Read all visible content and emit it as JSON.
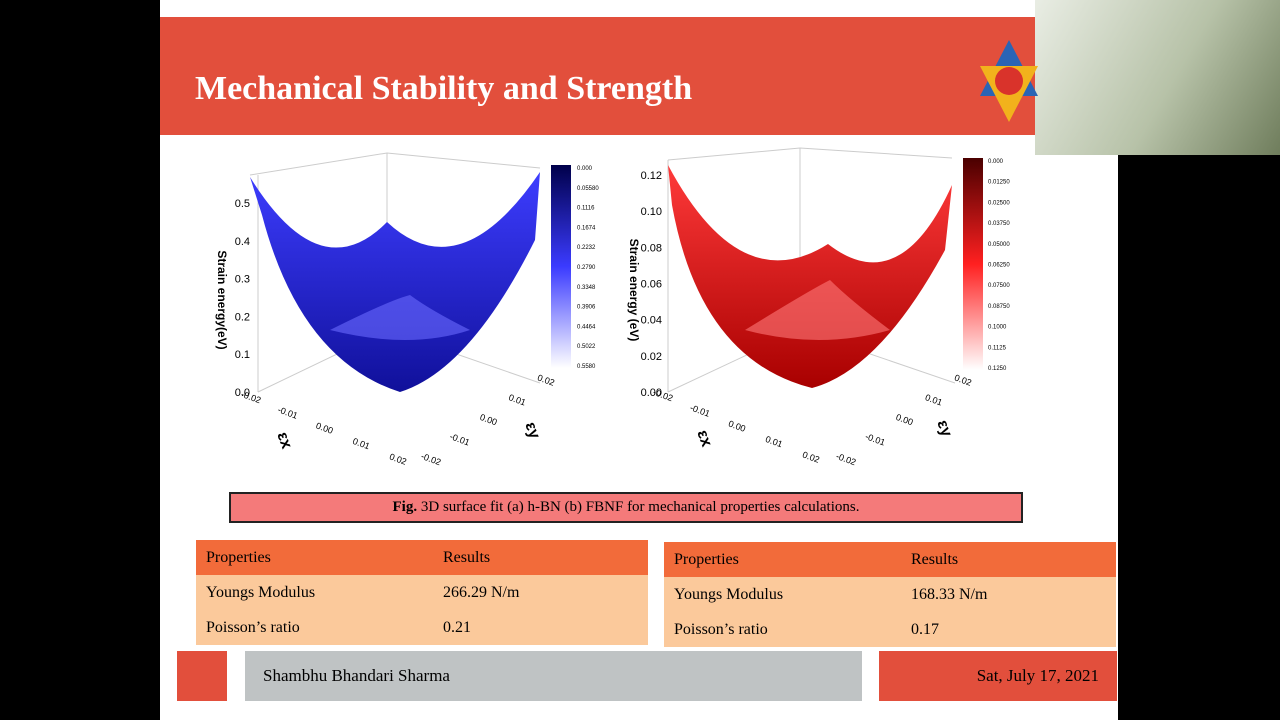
{
  "header": {
    "title": "Mechanical Stability and Strength"
  },
  "figures": [
    {
      "z_label": "Strain energy(eV)",
      "x_label": "εx",
      "y_label": "εy",
      "z_ticks": [
        "0.0",
        "0.1",
        "0.2",
        "0.3",
        "0.4",
        "0.5"
      ],
      "x_ticks": [
        "-0.02",
        "-0.01",
        "0.00",
        "0.01",
        "0.02"
      ],
      "y_ticks": [
        "-0.02",
        "-0.01",
        "0.00",
        "0.01",
        "0.02"
      ],
      "colorbar_ticks": [
        "0.000",
        "0.05580",
        "0.1116",
        "0.1674",
        "0.2232",
        "0.2790",
        "0.3348",
        "0.3906",
        "0.4464",
        "0.5022",
        "0.5580"
      ]
    },
    {
      "z_label": "Strain energy (eV)",
      "x_label": "εx",
      "y_label": "εy",
      "z_ticks": [
        "0.00",
        "0.02",
        "0.04",
        "0.06",
        "0.08",
        "0.10",
        "0.12"
      ],
      "x_ticks": [
        "-0.02",
        "-0.01",
        "0.00",
        "0.01",
        "0.02"
      ],
      "y_ticks": [
        "-0.02",
        "-0.01",
        "0.00",
        "0.01",
        "0.02"
      ],
      "colorbar_ticks": [
        "0.000",
        "0.01250",
        "0.02500",
        "0.03750",
        "0.05000",
        "0.06250",
        "0.07500",
        "0.08750",
        "0.1000",
        "0.1125",
        "0.1250"
      ]
    }
  ],
  "caption": {
    "label": "Fig.",
    "text": "3D surface fit (a) h-BN (b) FBNF  for mechanical properties calculations."
  },
  "tables": [
    {
      "header": [
        "Properties",
        "Results"
      ],
      "rows": [
        [
          "Youngs Modulus",
          "266.29 N/m"
        ],
        [
          "Poisson’s ratio",
          "0.21"
        ]
      ]
    },
    {
      "header": [
        "Properties",
        "Results"
      ],
      "rows": [
        [
          "Youngs Modulus",
          "168.33 N/m"
        ],
        [
          "Poisson’s ratio",
          "0.17"
        ]
      ]
    }
  ],
  "footer": {
    "author": "Shambhu Bhandari Sharma",
    "date": "Sat, July 17, 2021"
  }
}
